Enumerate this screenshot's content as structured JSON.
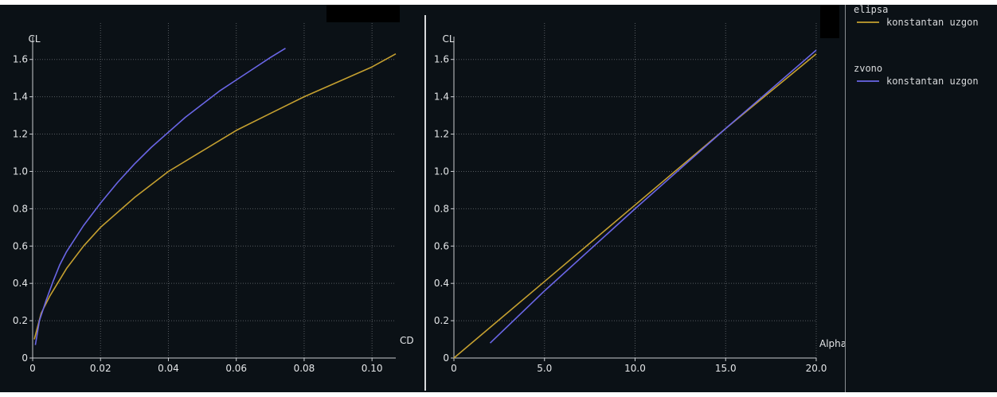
{
  "colors": {
    "background": "#0b1116",
    "axis": "#c8cbcf",
    "grid": "#565b60",
    "text": "#e4e6e8",
    "separator": "#d8dadc",
    "elipsa": "#c5a030",
    "zvono": "#6a66e6"
  },
  "chart_data": [
    {
      "type": "line",
      "xlabel": "CD",
      "ylabel": "CL",
      "xlim": [
        0,
        0.107
      ],
      "ylim": [
        0,
        1.65
      ],
      "xticks": [
        0,
        0.02,
        0.04,
        0.06,
        0.08,
        0.1
      ],
      "xtick_labels": [
        "0",
        "0.02",
        "0.04",
        "0.06",
        "0.08",
        "0.10"
      ],
      "yticks": [
        0,
        0.2,
        0.4,
        0.6,
        0.8,
        1.0,
        1.2,
        1.4,
        1.6
      ],
      "ytick_labels": [
        "0",
        "0.2",
        "0.4",
        "0.6",
        "0.8",
        "1.0",
        "1.2",
        "1.4",
        "1.6"
      ],
      "grid": true,
      "series": [
        {
          "name": "konstantan uzgon",
          "group": "elipsa",
          "color": "#c5a030",
          "x": [
            0.0005,
            0.0025,
            0.005,
            0.01,
            0.015,
            0.02,
            0.03,
            0.04,
            0.05,
            0.06,
            0.07,
            0.08,
            0.09,
            0.1,
            0.107
          ],
          "y": [
            0.1,
            0.24,
            0.33,
            0.48,
            0.6,
            0.7,
            0.86,
            1.0,
            1.11,
            1.22,
            1.31,
            1.4,
            1.48,
            1.56,
            1.63
          ]
        },
        {
          "name": "konstantan uzgon",
          "group": "zvono",
          "color": "#6a66e6",
          "x": [
            0.0008,
            0.002,
            0.004,
            0.006,
            0.008,
            0.01,
            0.015,
            0.02,
            0.025,
            0.03,
            0.035,
            0.04,
            0.045,
            0.05,
            0.055,
            0.06,
            0.065,
            0.07,
            0.0745
          ],
          "y": [
            0.07,
            0.2,
            0.31,
            0.41,
            0.5,
            0.57,
            0.71,
            0.83,
            0.94,
            1.04,
            1.13,
            1.21,
            1.29,
            1.36,
            1.43,
            1.49,
            1.55,
            1.61,
            1.66
          ]
        }
      ]
    },
    {
      "type": "line",
      "xlabel": "Alpha",
      "ylabel": "CL",
      "xlim": [
        0,
        20.0
      ],
      "ylim": [
        0,
        1.65
      ],
      "xticks": [
        0,
        5,
        10,
        15,
        20
      ],
      "xtick_labels": [
        "0",
        "5.0",
        "10.0",
        "15.0",
        "20.0"
      ],
      "yticks": [
        0,
        0.2,
        0.4,
        0.6,
        0.8,
        1.0,
        1.2,
        1.4,
        1.6
      ],
      "ytick_labels": [
        "0",
        "0.2",
        "0.4",
        "0.6",
        "0.8",
        "1.0",
        "1.2",
        "1.4",
        "1.6"
      ],
      "grid": true,
      "series": [
        {
          "name": "konstantan uzgon",
          "group": "elipsa",
          "color": "#c5a030",
          "x": [
            0,
            5,
            10,
            15,
            20
          ],
          "y": [
            0,
            0.41,
            0.82,
            1.23,
            1.63
          ]
        },
        {
          "name": "konstantan uzgon",
          "group": "zvono",
          "color": "#6a66e6",
          "x": [
            2,
            5,
            10,
            15,
            20
          ],
          "y": [
            0.08,
            0.36,
            0.8,
            1.23,
            1.65
          ]
        }
      ]
    }
  ],
  "legend": {
    "placement": "top-right",
    "groups": [
      {
        "title": "elipsa",
        "items": [
          {
            "label": "konstantan uzgon",
            "color": "#c5a030"
          }
        ]
      },
      {
        "title": "zvono",
        "items": [
          {
            "label": "konstantan uzgon",
            "color": "#6a66e6"
          }
        ]
      }
    ]
  }
}
